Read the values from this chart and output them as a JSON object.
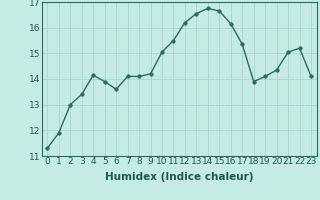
{
  "x": [
    0,
    1,
    2,
    3,
    4,
    5,
    6,
    7,
    8,
    9,
    10,
    11,
    12,
    13,
    14,
    15,
    16,
    17,
    18,
    19,
    20,
    21,
    22,
    23
  ],
  "y": [
    11.3,
    11.9,
    13.0,
    13.4,
    14.15,
    13.9,
    13.6,
    14.1,
    14.1,
    14.2,
    15.05,
    15.5,
    16.2,
    16.55,
    16.75,
    16.65,
    16.15,
    15.35,
    13.9,
    14.1,
    14.35,
    15.05,
    15.2,
    14.1
  ],
  "line_color": "#2d6b5e",
  "marker_color": "#2d6b5e",
  "bg_color": "#c5ebe5",
  "grid_color": "#aad4ce",
  "axis_color": "#2d6b5e",
  "text_color": "#1a5a4e",
  "xlabel": "Humidex (Indice chaleur)",
  "xlim": [
    -0.5,
    23.5
  ],
  "ylim": [
    11,
    17
  ],
  "yticks": [
    11,
    12,
    13,
    14,
    15,
    16,
    17
  ],
  "xticks": [
    0,
    1,
    2,
    3,
    4,
    5,
    6,
    7,
    8,
    9,
    10,
    11,
    12,
    13,
    14,
    15,
    16,
    17,
    18,
    19,
    20,
    21,
    22,
    23
  ],
  "xlabel_fontsize": 7.5,
  "tick_fontsize": 6.5,
  "marker_size": 2.5,
  "line_width": 1.0
}
